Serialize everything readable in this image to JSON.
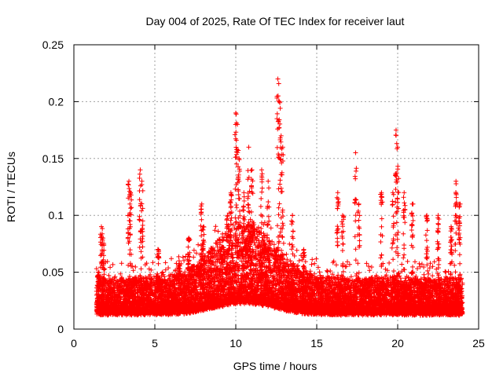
{
  "chart_data": {
    "type": "scatter",
    "title": "Day 004 of 2025, Rate Of TEC Index for receiver laut",
    "xlabel": "GPS time / hours",
    "ylabel": "ROTI / TECUs",
    "xlim": [
      0,
      25
    ],
    "ylim": [
      0,
      0.25
    ],
    "x_ticks": [
      0,
      5,
      10,
      15,
      20,
      25
    ],
    "x_tick_labels": [
      "0",
      "5",
      "10",
      "15",
      "20",
      "25"
    ],
    "y_ticks": [
      0,
      0.05,
      0.1,
      0.15,
      0.2,
      0.25
    ],
    "y_tick_labels": [
      "0",
      "0.05",
      "0.1",
      "0.15",
      "0.2",
      "0.25"
    ],
    "grid": true,
    "marker": "plus",
    "color": "#ff0000",
    "data_range_hours": [
      1.4,
      24.0
    ],
    "series": [
      {
        "name": "ROTI",
        "x": [
          1.5,
          1.7,
          1.8,
          3.4,
          3.5,
          4.1,
          4.2,
          5.2,
          6.5,
          7.1,
          7.9,
          8.0,
          9.5,
          9.7,
          10.0,
          10.1,
          10.2,
          10.5,
          10.8,
          11.0,
          11.6,
          12.0,
          12.6,
          12.7,
          12.8,
          12.9,
          13.5,
          14.2,
          16.3,
          16.6,
          17.4,
          17.6,
          19.0,
          19.7,
          19.9,
          20.0,
          20.4,
          20.9,
          21.8,
          22.5,
          23.3,
          23.6,
          23.8
        ],
        "y": [
          0.05,
          0.09,
          0.08,
          0.13,
          0.12,
          0.14,
          0.13,
          0.07,
          0.06,
          0.08,
          0.11,
          0.09,
          0.1,
          0.12,
          0.19,
          0.18,
          0.15,
          0.12,
          0.16,
          0.14,
          0.14,
          0.13,
          0.22,
          0.2,
          0.17,
          0.16,
          0.1,
          0.07,
          0.12,
          0.1,
          0.155,
          0.11,
          0.12,
          0.12,
          0.175,
          0.16,
          0.12,
          0.11,
          0.1,
          0.1,
          0.09,
          0.13,
          0.11
        ]
      }
    ]
  }
}
